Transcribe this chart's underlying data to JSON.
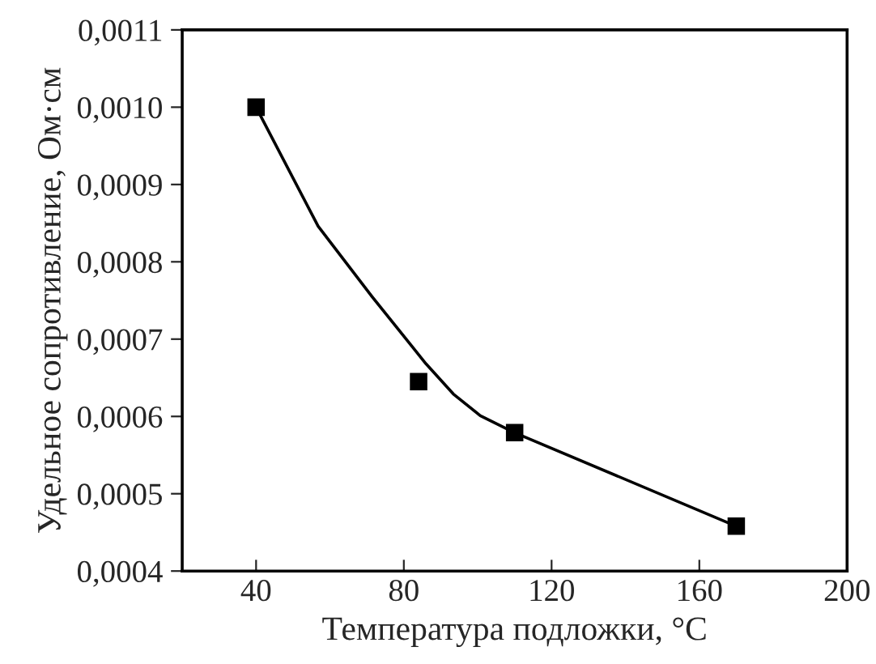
{
  "chart_data": {
    "type": "scatter",
    "xlabel": "Температура подложки, °C",
    "ylabel": "Удельное сопротивление, Ом·см",
    "xlim": [
      20,
      200
    ],
    "xticks": [
      40,
      80,
      120,
      160,
      200
    ],
    "ylim": [
      0.0004,
      0.0011
    ],
    "yticks": [
      {
        "value": 0.0004,
        "label": "0,0004"
      },
      {
        "value": 0.0005,
        "label": "0,0005"
      },
      {
        "value": 0.0006,
        "label": "0,0006"
      },
      {
        "value": 0.0007,
        "label": "0,0007"
      },
      {
        "value": 0.0008,
        "label": "0,0008"
      },
      {
        "value": 0.0009,
        "label": "0,0009"
      },
      {
        "value": 0.001,
        "label": "0,0010"
      },
      {
        "value": 0.0011,
        "label": "0,0011"
      }
    ],
    "grid": false,
    "legend": false,
    "series": [
      {
        "color": "#000000",
        "marker": "square",
        "x": [
          40,
          84,
          110,
          170
        ],
        "values": [
          0.001,
          0.000645,
          0.000579,
          0.000458
        ]
      },
      {
        "type": "line",
        "color": "#000000",
        "marker": "none",
        "line_style": "solid",
        "x": [
          40,
          56.8,
          71.4,
          86,
          93.4,
          100.7,
          110,
          170
        ],
        "values": [
          0.001,
          0.000846,
          0.000755,
          0.000668,
          0.000629,
          0.000601,
          0.000579,
          0.000458
        ]
      }
    ]
  }
}
